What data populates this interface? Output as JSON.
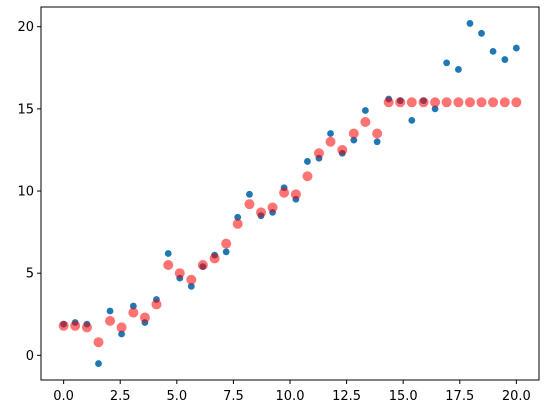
{
  "chart_data": {
    "type": "scatter",
    "title": "",
    "xlabel": "",
    "ylabel": "",
    "xlim": [
      -1.0,
      21.0
    ],
    "ylim": [
      -1.5,
      21.2
    ],
    "grid": false,
    "legend": "none",
    "x_ticks": [
      {
        "value": 0.0,
        "label": "0.0"
      },
      {
        "value": 2.5,
        "label": "2.5"
      },
      {
        "value": 5.0,
        "label": "5.0"
      },
      {
        "value": 7.5,
        "label": "7.5"
      },
      {
        "value": 10.0,
        "label": "10.0"
      },
      {
        "value": 12.5,
        "label": "12.5"
      },
      {
        "value": 15.0,
        "label": "15.0"
      },
      {
        "value": 17.5,
        "label": "17.5"
      },
      {
        "value": 20.0,
        "label": "20.0"
      }
    ],
    "y_ticks": [
      {
        "value": 0,
        "label": "0"
      },
      {
        "value": 5,
        "label": "5"
      },
      {
        "value": 10,
        "label": "10"
      },
      {
        "value": 15,
        "label": "15"
      },
      {
        "value": 20,
        "label": "20"
      }
    ],
    "series": [
      {
        "color": "#1f77b4",
        "opacity": 1.0,
        "marker_size": "small",
        "x": [
          0.0,
          0.51,
          1.03,
          1.54,
          2.05,
          2.56,
          3.08,
          3.59,
          4.1,
          4.62,
          5.13,
          5.64,
          6.15,
          6.67,
          7.18,
          7.69,
          8.21,
          8.72,
          9.23,
          9.74,
          10.26,
          10.77,
          11.28,
          11.79,
          12.31,
          12.82,
          13.33,
          13.85,
          14.36,
          14.87,
          15.38,
          15.9,
          16.41,
          16.92,
          17.44,
          17.95,
          18.46,
          18.97,
          19.49,
          20.0
        ],
        "y": [
          1.9,
          2.0,
          1.9,
          -0.5,
          2.7,
          1.3,
          3.0,
          2.0,
          3.4,
          6.2,
          4.7,
          4.2,
          5.4,
          6.1,
          6.3,
          8.4,
          9.8,
          8.5,
          8.7,
          10.2,
          9.5,
          11.8,
          12.0,
          13.5,
          12.3,
          13.1,
          14.9,
          13.0,
          15.6,
          15.5,
          14.3,
          15.5,
          15.0,
          17.8,
          17.4,
          20.2,
          19.6,
          18.5,
          18.0,
          18.7
        ]
      },
      {
        "color": "#ff0000",
        "opacity": 0.55,
        "marker_size": "large",
        "x": [
          0.0,
          0.51,
          1.03,
          1.54,
          2.05,
          2.56,
          3.08,
          3.59,
          4.1,
          4.62,
          5.13,
          5.64,
          6.15,
          6.67,
          7.18,
          7.69,
          8.21,
          8.72,
          9.23,
          9.74,
          10.26,
          10.77,
          11.28,
          11.79,
          12.31,
          12.82,
          13.33,
          13.85,
          14.36,
          14.87,
          15.38,
          15.9,
          16.41,
          16.92,
          17.44,
          17.95,
          18.46,
          18.97,
          19.49,
          20.0
        ],
        "y": [
          1.8,
          1.8,
          1.7,
          0.8,
          2.1,
          1.7,
          2.6,
          2.3,
          3.1,
          5.5,
          5.0,
          4.6,
          5.5,
          5.9,
          6.8,
          8.0,
          9.2,
          8.7,
          9.0,
          9.9,
          9.8,
          10.9,
          12.3,
          13.0,
          12.5,
          13.5,
          14.2,
          13.5,
          15.4,
          15.4,
          15.4,
          15.4,
          15.4,
          15.4,
          15.4,
          15.4,
          15.4,
          15.4,
          15.4,
          15.4
        ]
      }
    ]
  }
}
